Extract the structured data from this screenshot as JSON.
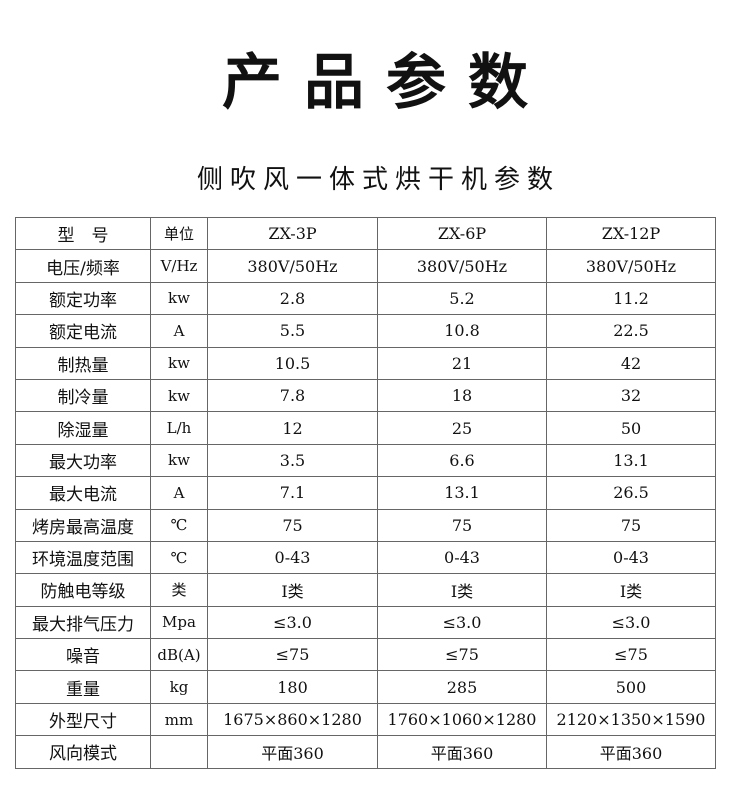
{
  "title": "产品参数",
  "subtitle": "侧吹风一体式烘干机参数",
  "table": {
    "header": [
      "型　号",
      "单位",
      "ZX-3P",
      "ZX-6P",
      "ZX-12P"
    ],
    "rows": [
      [
        "电压/频率",
        "V/Hz",
        "380V/50Hz",
        "380V/50Hz",
        "380V/50Hz"
      ],
      [
        "额定功率",
        "kw",
        "2.8",
        "5.2",
        "11.2"
      ],
      [
        "额定电流",
        "A",
        "5.5",
        "10.8",
        "22.5"
      ],
      [
        "制热量",
        "kw",
        "10.5",
        "21",
        "42"
      ],
      [
        "制冷量",
        "kw",
        "7.8",
        "18",
        "32"
      ],
      [
        "除湿量",
        "L/h",
        "12",
        "25",
        "50"
      ],
      [
        "最大功率",
        "kw",
        "3.5",
        "6.6",
        "13.1"
      ],
      [
        "最大电流",
        "A",
        "7.1",
        "13.1",
        "26.5"
      ],
      [
        "烤房最高温度",
        "℃",
        "75",
        "75",
        "75"
      ],
      [
        "环境温度范围",
        "℃",
        "0-43",
        "0-43",
        "0-43"
      ],
      [
        "防触电等级",
        "类",
        "I类",
        "I类",
        "I类"
      ],
      [
        "最大排气压力",
        "Mpa",
        "≤3.0",
        "≤3.0",
        "≤3.0"
      ],
      [
        "噪音",
        "dB(A)",
        "≤75",
        "≤75",
        "≤75"
      ],
      [
        "重量",
        "kg",
        "180",
        "285",
        "500"
      ],
      [
        "外型尺寸",
        "mm",
        "1675×860×1280",
        "1760×1060×1280",
        "2120×1350×1590"
      ],
      [
        "风向模式",
        "",
        "平面360",
        "平面360",
        "平面360"
      ]
    ]
  }
}
